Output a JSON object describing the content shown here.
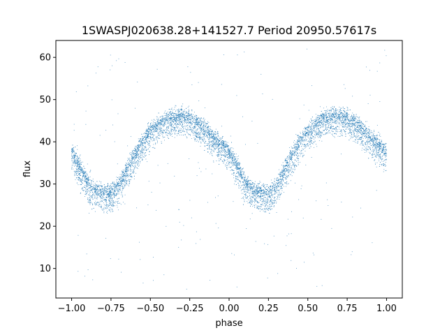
{
  "chart_data": {
    "type": "scatter",
    "title": "1SWASPJ020638.28+141527.7 Period 20950.57617s",
    "xlabel": "phase",
    "ylabel": "flux",
    "xlim": [
      -1.1,
      1.1
    ],
    "ylim": [
      3,
      64
    ],
    "xticks": [
      -1.0,
      -0.75,
      -0.5,
      -0.25,
      0.0,
      0.25,
      0.5,
      0.75,
      1.0
    ],
    "xtick_labels": [
      "−1.00",
      "−0.75",
      "−0.50",
      "−0.25",
      "0.00",
      "0.25",
      "0.50",
      "0.75",
      "1.00"
    ],
    "yticks": [
      10,
      20,
      30,
      40,
      50,
      60
    ],
    "ytick_labels": [
      "10",
      "20",
      "30",
      "40",
      "50",
      "60"
    ],
    "grid": false,
    "legend": "none",
    "marker_color": "#1f77b4",
    "phase_folded_curve": {
      "period_in_phase": 1.0,
      "phase": [
        -1.0,
        -0.95,
        -0.9,
        -0.85,
        -0.8,
        -0.75,
        -0.7,
        -0.65,
        -0.6,
        -0.55,
        -0.5,
        -0.45,
        -0.4,
        -0.35,
        -0.3,
        -0.25,
        -0.2,
        -0.15,
        -0.1,
        -0.05,
        0.0
      ],
      "flux": [
        37.5,
        34.5,
        30.5,
        28.5,
        28.0,
        28.0,
        29.5,
        33.5,
        37.0,
        40.0,
        42.5,
        44.0,
        45.5,
        46.0,
        46.0,
        45.5,
        44.5,
        43.0,
        41.0,
        39.5,
        37.5
      ],
      "upper_branch_offset": 0,
      "lower_branch_offset": -3,
      "scatter_sigma": 1.0
    },
    "outliers": {
      "count": 200,
      "flux_range": [
        5,
        62
      ]
    },
    "n_points": 9000
  }
}
